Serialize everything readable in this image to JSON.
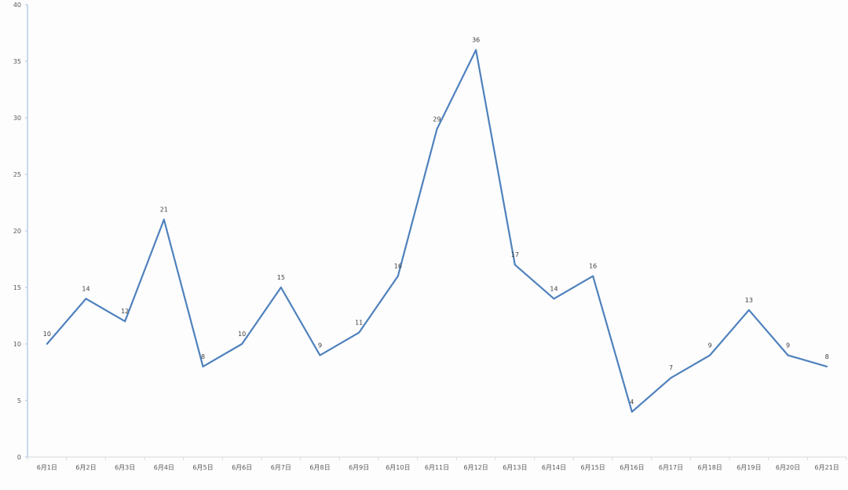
{
  "chart_data": {
    "type": "line",
    "categories": [
      "6月1日",
      "6月2日",
      "6月3日",
      "6月4日",
      "6月5日",
      "6月6日",
      "6月7日",
      "6月8日",
      "6月9日",
      "6月10日",
      "6月11日",
      "6月12日",
      "6月13日",
      "6月14日",
      "6月15日",
      "6月16日",
      "6月17日",
      "6月18日",
      "6月19日",
      "6月20日",
      "6月21日"
    ],
    "series": [
      {
        "values": [
          10,
          14,
          12,
          21,
          8,
          10,
          15,
          9,
          11,
          16,
          29,
          36,
          17,
          14,
          16,
          4,
          7,
          9,
          13,
          9,
          8
        ],
        "color": "#4f81bd"
      }
    ],
    "ylim": [
      0,
      40
    ],
    "yticks": [
      0,
      5,
      10,
      15,
      20,
      25,
      30,
      35,
      40
    ],
    "data_labels": true,
    "grid": false,
    "legend": "none",
    "title": "",
    "xlabel": "",
    "ylabel": ""
  }
}
